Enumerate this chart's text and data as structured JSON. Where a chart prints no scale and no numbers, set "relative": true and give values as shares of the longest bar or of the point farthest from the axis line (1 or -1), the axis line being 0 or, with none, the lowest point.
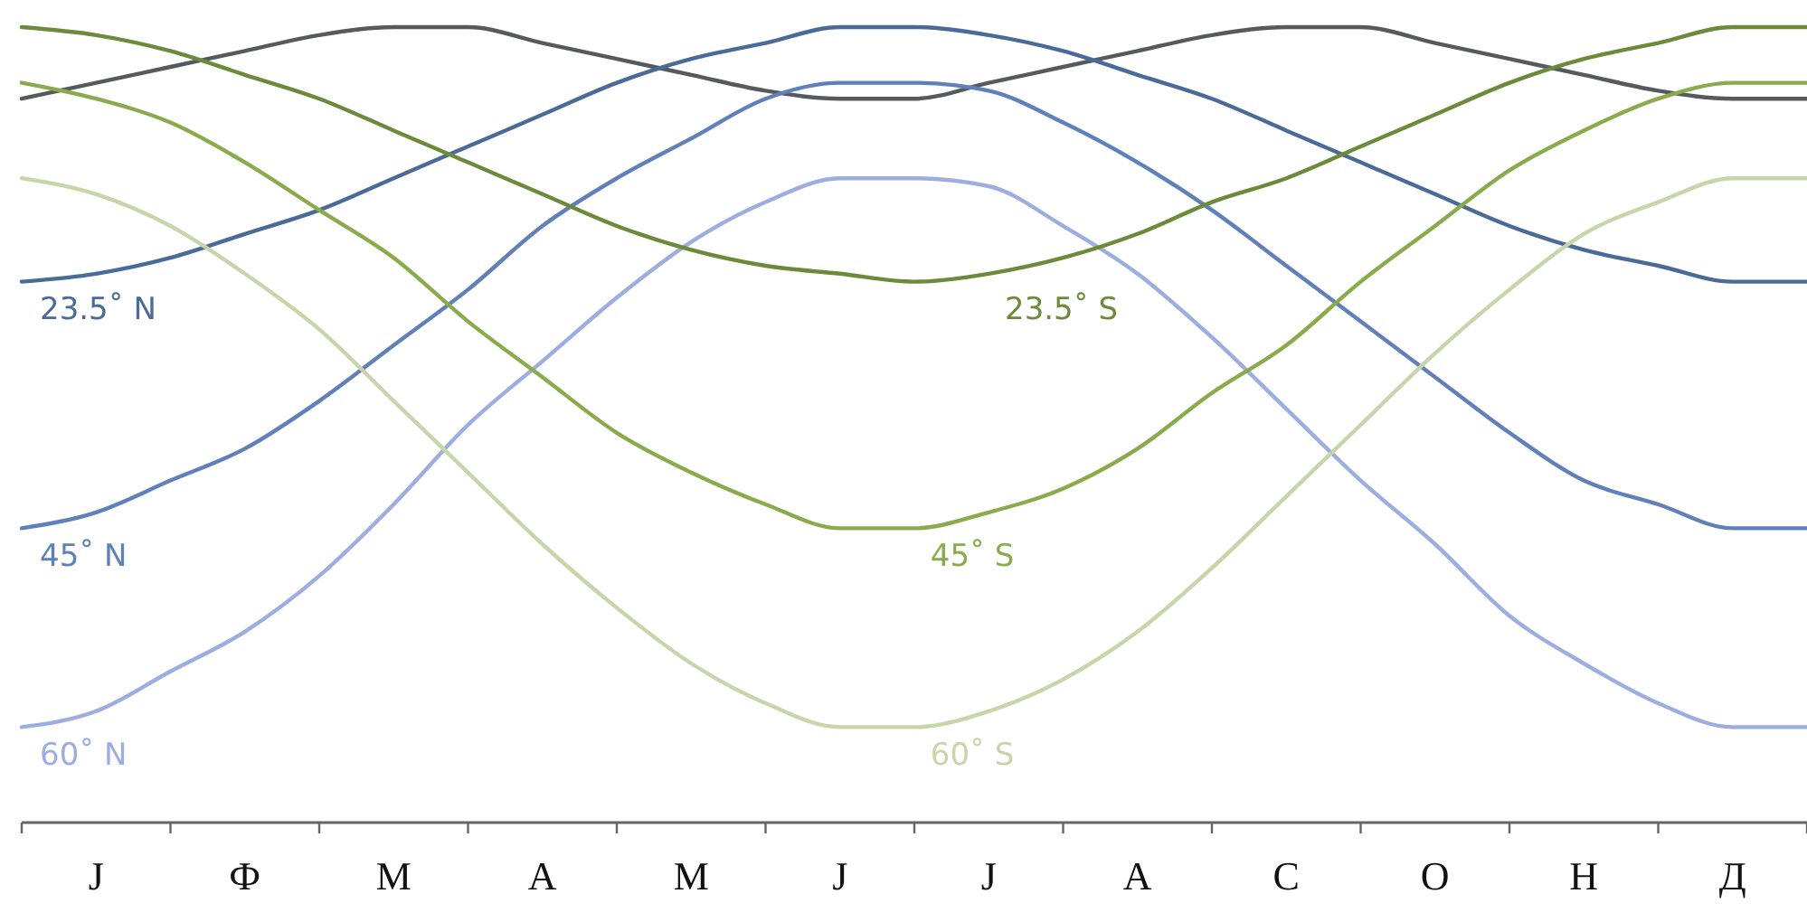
{
  "chart_data": {
    "type": "line",
    "relative": true,
    "categories": [
      null,
      "Ј",
      null,
      "Ф",
      null,
      "М",
      null,
      "А",
      null,
      "М",
      null,
      "Ј",
      null,
      "Ј",
      null,
      "А",
      null,
      "С",
      null,
      "О",
      null,
      "Н",
      null,
      "Д",
      null
    ],
    "series": [
      {
        "color": "#555a5e",
        "values": [
          0.91,
          0.93,
          0.95,
          0.97,
          0.99,
          1,
          1,
          0.98,
          0.96,
          0.94,
          0.92,
          0.91,
          0.91,
          0.93,
          0.95,
          0.97,
          0.99,
          1,
          1,
          0.98,
          0.96,
          0.94,
          0.92,
          0.91,
          0.91
        ]
      },
      {
        "name": "23.5˚ N",
        "color": "#4a6a98",
        "values": [
          0.68,
          0.69,
          0.71,
          0.74,
          0.77,
          0.81,
          0.85,
          0.89,
          0.93,
          0.96,
          0.98,
          1,
          1,
          0.99,
          0.97,
          0.94,
          0.91,
          0.87,
          0.83,
          0.79,
          0.75,
          0.72,
          0.7,
          0.68,
          0.68
        ]
      },
      {
        "name": "45˚ N",
        "color": "#5f80b8",
        "values": [
          0.37,
          0.39,
          0.43,
          0.47,
          0.53,
          0.6,
          0.67,
          0.75,
          0.81,
          0.86,
          0.91,
          0.93,
          0.93,
          0.92,
          0.88,
          0.83,
          0.77,
          0.7,
          0.63,
          0.56,
          0.49,
          0.43,
          0.4,
          0.37,
          0.37
        ]
      },
      {
        "name": "60˚ N",
        "color": "#9dade0",
        "values": [
          0.12,
          0.14,
          0.19,
          0.24,
          0.31,
          0.4,
          0.5,
          0.58,
          0.66,
          0.73,
          0.78,
          0.81,
          0.81,
          0.8,
          0.75,
          0.69,
          0.61,
          0.52,
          0.43,
          0.35,
          0.26,
          0.2,
          0.15,
          0.12,
          0.12
        ]
      },
      {
        "name": "23.5˚ S",
        "color": "#6b8a3a",
        "values": [
          1,
          0.99,
          0.97,
          0.94,
          0.91,
          0.87,
          0.83,
          0.79,
          0.75,
          0.72,
          0.7,
          0.69,
          0.68,
          0.69,
          0.71,
          0.74,
          0.78,
          0.81,
          0.85,
          0.89,
          0.93,
          0.96,
          0.98,
          1,
          1
        ]
      },
      {
        "name": "45˚ S",
        "color": "#8aab4c",
        "values": [
          0.93,
          0.91,
          0.88,
          0.83,
          0.77,
          0.71,
          0.63,
          0.56,
          0.49,
          0.44,
          0.4,
          0.37,
          0.37,
          0.39,
          0.42,
          0.47,
          0.54,
          0.6,
          0.68,
          0.75,
          0.82,
          0.87,
          0.91,
          0.93,
          0.93
        ]
      },
      {
        "name": "60˚ S",
        "color": "#c6d5aa",
        "values": [
          0.81,
          0.79,
          0.75,
          0.69,
          0.62,
          0.53,
          0.44,
          0.35,
          0.27,
          0.2,
          0.15,
          0.12,
          0.12,
          0.14,
          0.18,
          0.24,
          0.32,
          0.41,
          0.5,
          0.59,
          0.67,
          0.74,
          0.78,
          0.81,
          0.81
        ]
      }
    ]
  }
}
